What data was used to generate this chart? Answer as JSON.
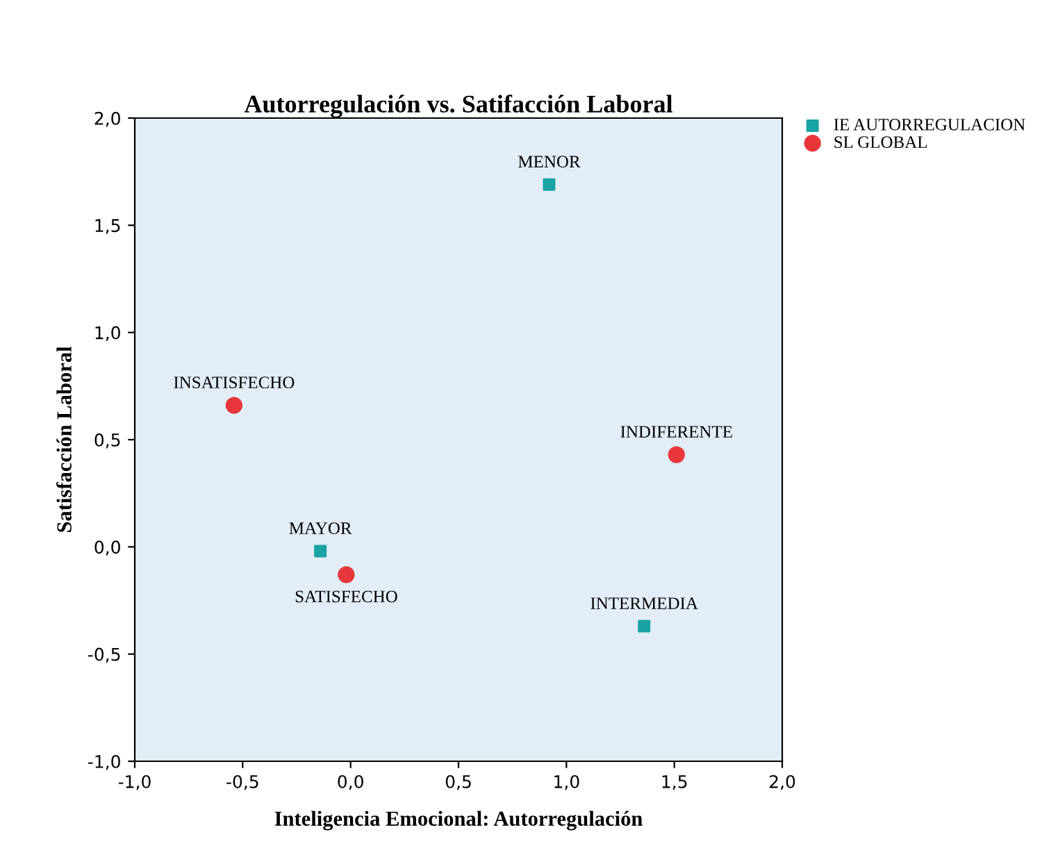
{
  "chart_data": {
    "type": "scatter",
    "title": "Autorregulación vs. Satifacción Laboral",
    "xlabel": "Inteligencia Emocional: Autorregulación",
    "ylabel": "Satisfacción Laboral",
    "series": [
      {
        "name": "IE AUTORREGULACION",
        "color": "#1aa3a3",
        "marker": "square",
        "x": [
          0.92,
          -0.14,
          1.36
        ],
        "values": [
          1.69,
          -0.02,
          -0.37
        ]
      },
      {
        "name": "SL GLOBAL",
        "color": "#e8373a",
        "marker": "circle",
        "x": [
          -0.54,
          -0.02,
          1.51
        ],
        "values": [
          0.66,
          -0.13,
          0.43
        ]
      }
    ],
    "annotations": [
      {
        "text": "MENOR",
        "x": 0.92,
        "y": 1.69
      },
      {
        "text": "MAYOR",
        "x": -0.14,
        "y": -0.02
      },
      {
        "text": "INTERMEDIA",
        "x": 1.36,
        "y": -0.37
      },
      {
        "text": "INSATISFECHO",
        "x": -0.54,
        "y": 0.66
      },
      {
        "text": "SATISFECHO",
        "x": -0.02,
        "y": -0.13
      },
      {
        "text": "INDIFERENTE",
        "x": 1.51,
        "y": 0.43
      }
    ],
    "xlim": [
      -1.0,
      2.0
    ],
    "ylim": [
      -1.0,
      2.0
    ],
    "xticks": [
      {
        "value": -1.0,
        "label": "-1,0"
      },
      {
        "value": -0.5,
        "label": "-0,5"
      },
      {
        "value": 0.0,
        "label": "0,0"
      },
      {
        "value": 0.5,
        "label": "0,5"
      },
      {
        "value": 1.0,
        "label": "1,0"
      },
      {
        "value": 1.5,
        "label": "1,5"
      },
      {
        "value": 2.0,
        "label": "2,0"
      }
    ],
    "yticks": [
      {
        "value": -1.0,
        "label": "-1,0"
      },
      {
        "value": -0.5,
        "label": "-0,5"
      },
      {
        "value": 0.0,
        "label": "0,0"
      },
      {
        "value": 0.5,
        "label": "0,5"
      },
      {
        "value": 1.0,
        "label": "1,0"
      },
      {
        "value": 1.5,
        "label": "1,5"
      },
      {
        "value": 2.0,
        "label": "2,0"
      }
    ],
    "grid": false,
    "legend": "top right"
  }
}
